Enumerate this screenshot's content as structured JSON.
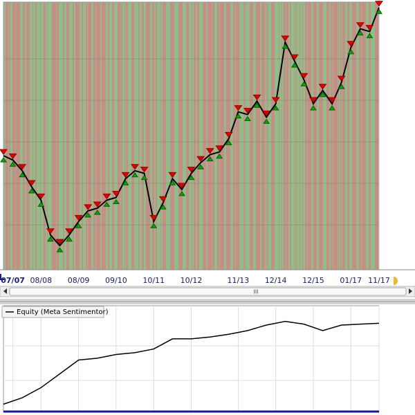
{
  "chart_data": [
    {
      "type": "line",
      "categories": [
        null,
        "07/07",
        null,
        null,
        "08/08",
        null,
        null,
        null,
        "08/09",
        null,
        null,
        null,
        "09/10",
        null,
        null,
        null,
        "10/11",
        null,
        null,
        null,
        "10/12",
        null,
        null,
        null,
        null,
        "11/13",
        null,
        null,
        null,
        "12/14",
        null,
        null,
        null,
        "12/15",
        null,
        null,
        null,
        "01/17",
        null,
        null,
        "11/17"
      ],
      "values": [
        42.6,
        41,
        37,
        31,
        26,
        13,
        9,
        13,
        18,
        22,
        23,
        26,
        27,
        34,
        37,
        36,
        18,
        25,
        34,
        30,
        36,
        40,
        43,
        44,
        49,
        59,
        58,
        63,
        57,
        62,
        85,
        78,
        71,
        62,
        67,
        62,
        70,
        83,
        90,
        89,
        98
      ],
      "color": "#000000",
      "ylim": [
        0,
        100
      ]
    },
    {
      "type": "line",
      "series": [
        {
          "name": "Equity (Meta Sentimentor)",
          "color": "#000000",
          "values": [
            8,
            15,
            26,
            41,
            56,
            58,
            62,
            64,
            68,
            79,
            79,
            81,
            84,
            88,
            94,
            98,
            95,
            88,
            94,
            95,
            96
          ]
        }
      ],
      "ylim": [
        0,
        100
      ]
    }
  ],
  "scrollbar": {
    "thumb_label": "III"
  }
}
